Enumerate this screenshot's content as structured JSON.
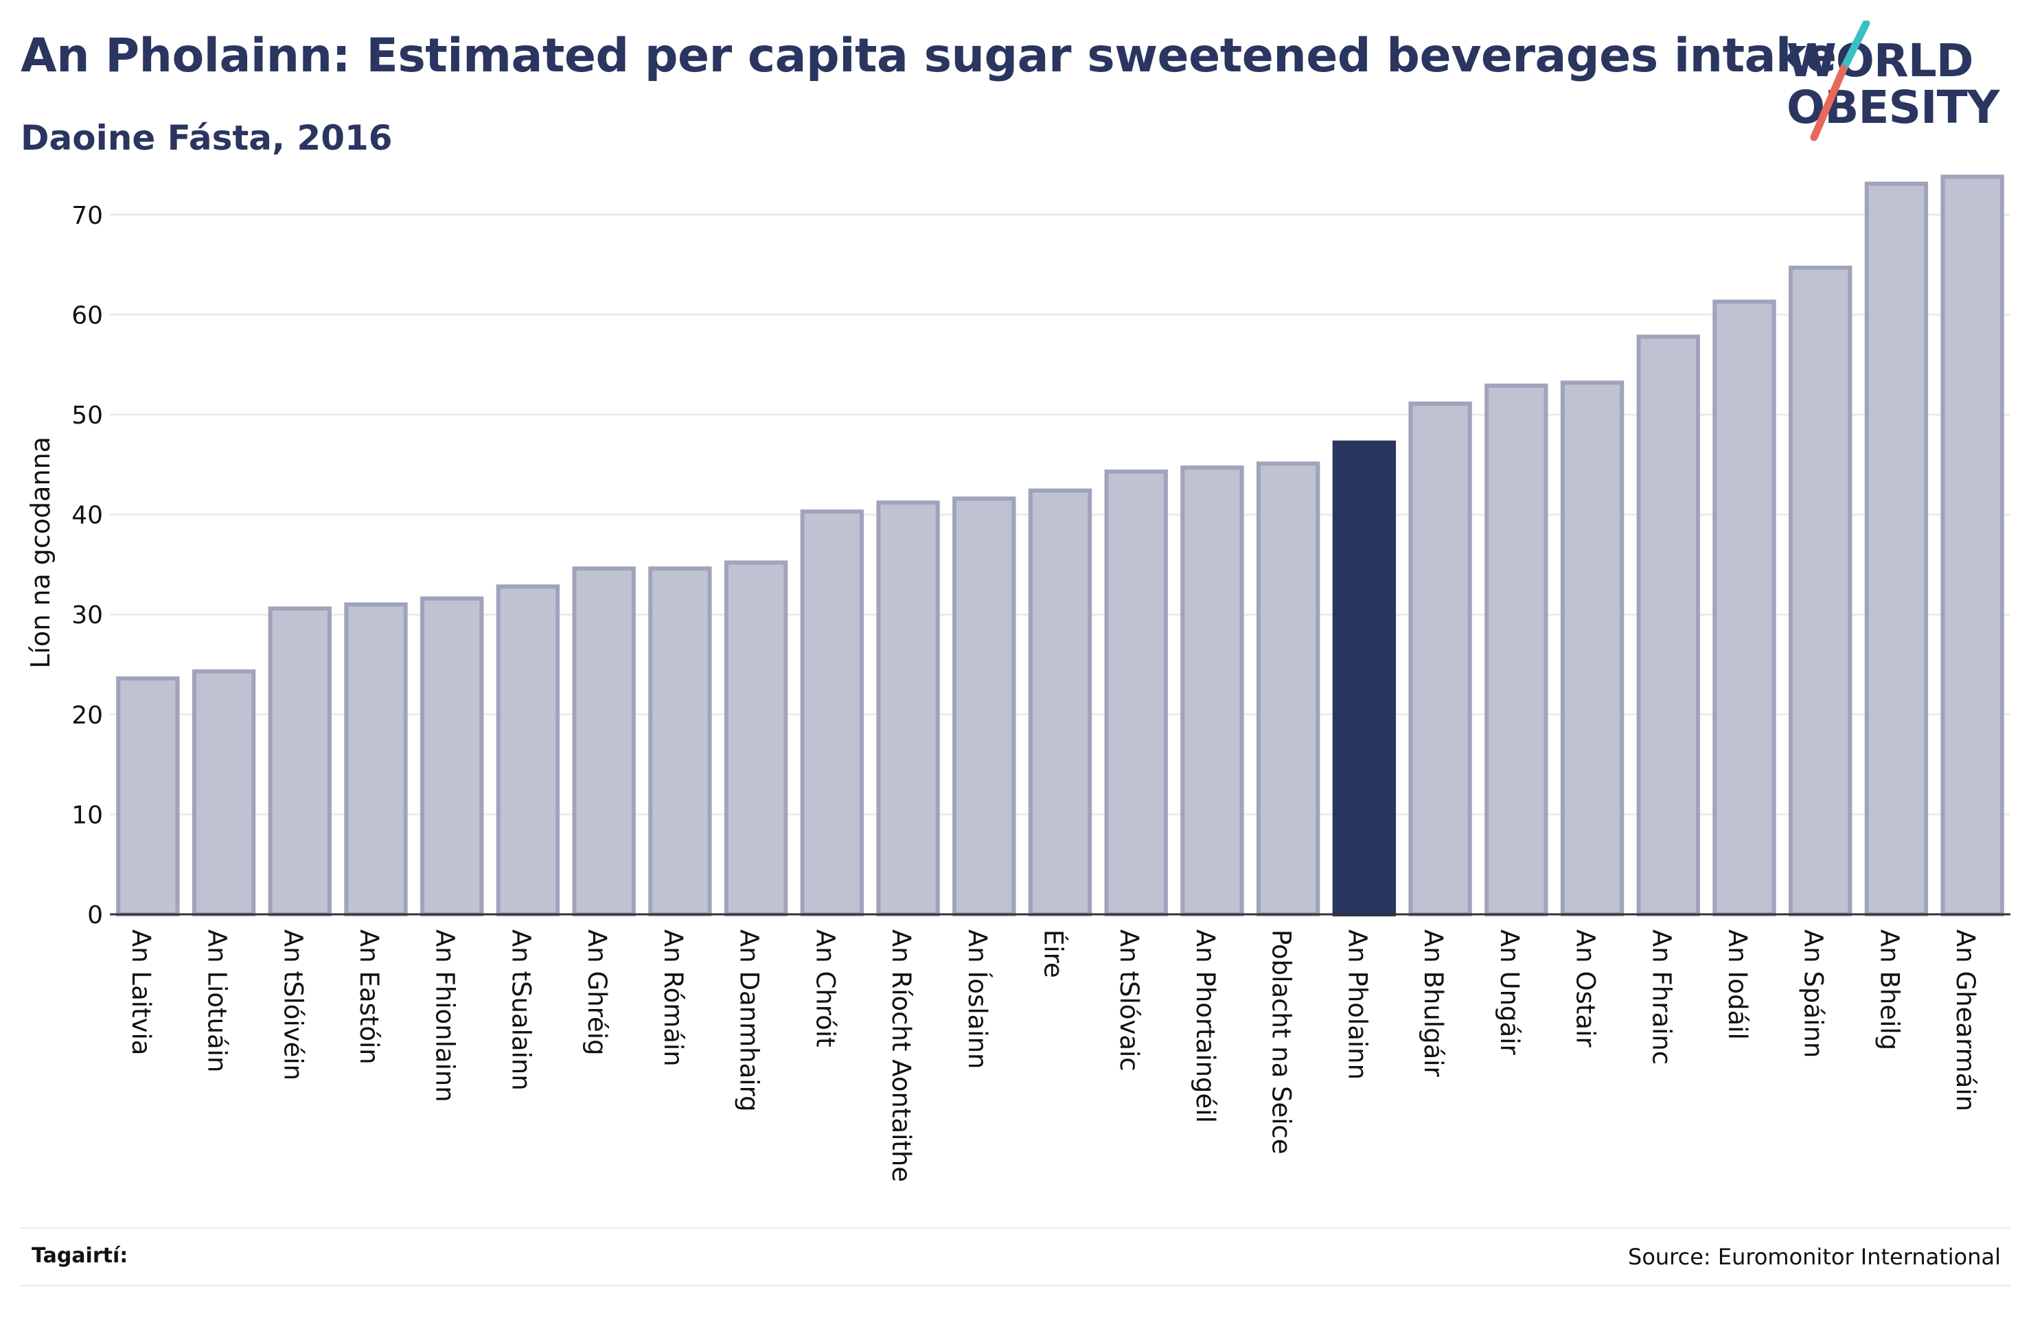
{
  "header": {
    "title": "An Pholainn: Estimated per capita sugar sweetened beverages intake",
    "subtitle": "Daoine Fásta, 2016"
  },
  "logo": {
    "line1": "WORLD",
    "line2": "OBESITY",
    "accent_colors": [
      "#3bbfc1",
      "#e8685a"
    ]
  },
  "footer": {
    "references_label": "Tagairtí:",
    "source": "Source: Euromonitor International"
  },
  "colors": {
    "bar": "#bfc2d0",
    "bar_border": "#9fa3bb",
    "highlight": "#2a3560",
    "grid": "#e8ebf0",
    "text": "#2a3560"
  },
  "chart_data": {
    "type": "bar",
    "ylabel": "Líon na gcodanna",
    "xlabel": "",
    "ylim": [
      0,
      75
    ],
    "yticks": [
      0,
      10,
      20,
      30,
      40,
      50,
      60,
      70
    ],
    "grid": true,
    "highlight_category": "An Pholainn",
    "categories": [
      "An Laitvia",
      "An Liotuáin",
      "An tSlóivéin",
      "An Eastóin",
      "An Fhionlainn",
      "An tSualainn",
      "An Ghréig",
      "An Rómáin",
      "An Danmhairg",
      "An Chróit",
      "An Ríocht Aontaithe",
      "An Íoslainn",
      "Éire",
      "An tSlóvaic",
      "An Phortaingéil",
      "Poblacht na Seice",
      "An Pholainn",
      "An Bhulgáir",
      "An Ungáir",
      "An Ostair",
      "An Fhrainc",
      "An Iodáil",
      "An Spáinn",
      "An Bheilg",
      "An Ghearmáin"
    ],
    "values": [
      23.6,
      24.3,
      30.6,
      31.0,
      31.6,
      32.8,
      34.6,
      34.6,
      35.2,
      40.3,
      41.2,
      41.6,
      42.4,
      44.3,
      44.7,
      45.1,
      47.2,
      51.1,
      52.9,
      53.2,
      57.8,
      61.3,
      64.7,
      73.1,
      73.8
    ]
  }
}
